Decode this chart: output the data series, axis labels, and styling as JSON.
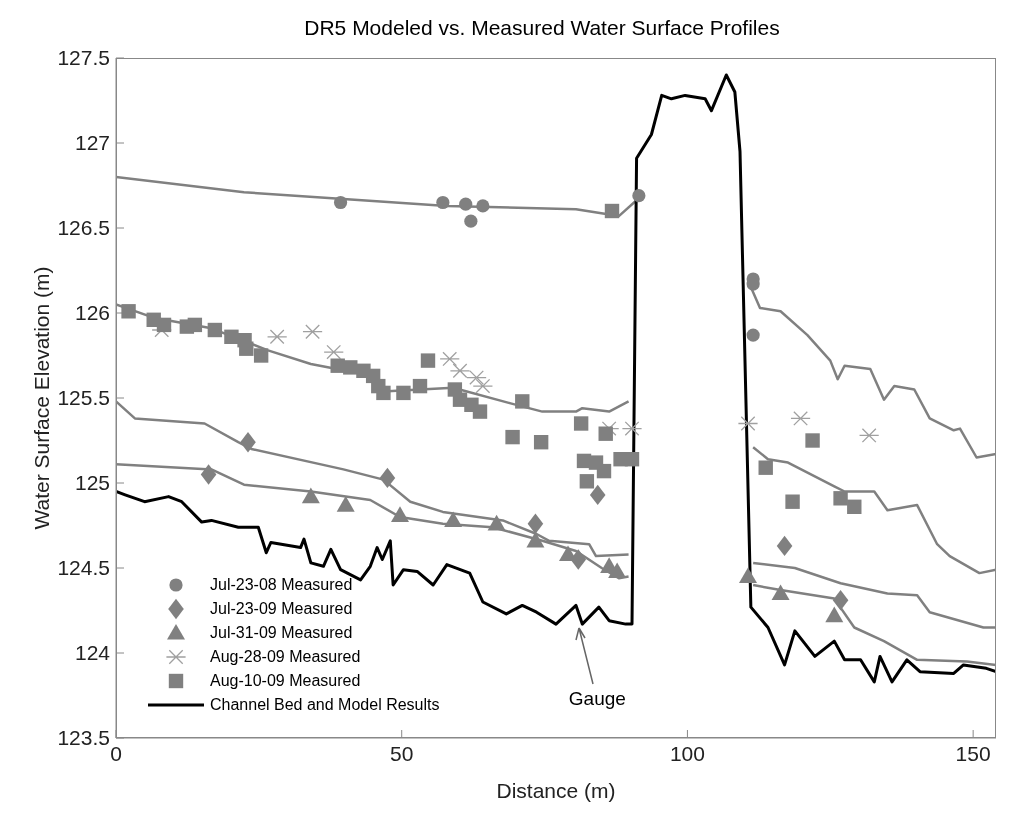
{
  "chart_data": {
    "type": "line",
    "title": "DR5 Modeled vs. Measured Water Surface Profiles",
    "xlabel": "Distance (m)",
    "ylabel": "Water Surface Elevation (m)",
    "xlim": [
      0,
      154
    ],
    "xticks": [
      0,
      50,
      100,
      150
    ],
    "ylim": [
      123.5,
      127.5
    ],
    "yticks": [
      {
        "value": 123.5,
        "label": "123.5"
      },
      124,
      {
        "value": 124.5,
        "label": "124.5"
      },
      125,
      {
        "value": 125.5,
        "label": "125.5"
      },
      126,
      {
        "value": 126.5,
        "label": "126.5"
      },
      127,
      {
        "value": 127.5,
        "label": "127.5"
      }
    ],
    "legend": "bottom left",
    "line_style": "solid",
    "annotations": [
      {
        "text": "Gauge",
        "x": 81,
        "y": 124.18
      }
    ],
    "series": [
      {
        "name": "Jul-23-08 Measured",
        "type": "scatter",
        "marker": "circle",
        "color": "#808080",
        "x": [
          39.3,
          57.2,
          61.2,
          62.1,
          64.2,
          91.5,
          111.5,
          111.5,
          111.5
        ],
        "values": [
          126.65,
          126.65,
          126.64,
          126.54,
          126.63,
          126.69,
          126.2,
          126.17,
          125.87
        ]
      },
      {
        "name": "Jul-23-09 Measured",
        "type": "scatter",
        "marker": "diamond",
        "color": "#808080",
        "x": [
          16.2,
          23.1,
          47.5,
          73.4,
          80.9,
          84.3,
          117,
          126.8
        ],
        "values": [
          125.05,
          125.24,
          125.03,
          124.76,
          124.55,
          124.93,
          124.63,
          124.31
        ]
      },
      {
        "name": "Jul-31-09 Measured",
        "type": "scatter",
        "marker": "triangle",
        "color": "#808080",
        "x": [
          34.1,
          40.2,
          49.7,
          59,
          66.6,
          73.4,
          79.1,
          86.3,
          87.7,
          110.6,
          116.3,
          125.7
        ],
        "values": [
          124.92,
          124.87,
          124.81,
          124.78,
          124.76,
          124.66,
          124.58,
          124.51,
          124.48,
          124.45,
          124.35,
          124.22
        ]
      },
      {
        "name": "Aug-28-09 Measured",
        "type": "scatter",
        "marker": "cross",
        "color": "#a0a0a0",
        "x": [
          8,
          28.2,
          34.4,
          38.1,
          58.4,
          60.2,
          63.1,
          64.2,
          86.3,
          90.3,
          110.6,
          119.8,
          131.8
        ],
        "values": [
          125.9,
          125.86,
          125.89,
          125.77,
          125.73,
          125.66,
          125.62,
          125.57,
          125.32,
          125.32,
          125.35,
          125.38,
          125.28
        ]
      },
      {
        "name": "Aug-10-09 Measured",
        "type": "scatter",
        "marker": "square",
        "color": "#808080",
        "x": [
          2.2,
          6.6,
          8.4,
          12.4,
          13.8,
          17.3,
          20.2,
          22.5,
          22.8,
          25.4,
          38.8,
          41,
          43.3,
          45,
          45.9,
          46.8,
          50.3,
          53.2,
          54.6,
          59.3,
          60.2,
          62.2,
          63.7,
          71.1,
          69.4,
          74.4,
          81.4,
          85.7,
          81.9,
          84,
          85.4,
          82.4,
          88.3,
          90.3,
          86.8,
          113.7,
          121.9,
          118.4,
          126.8,
          129.2
        ],
        "values": [
          126.01,
          125.96,
          125.93,
          125.92,
          125.93,
          125.9,
          125.86,
          125.84,
          125.79,
          125.75,
          125.69,
          125.68,
          125.66,
          125.63,
          125.57,
          125.53,
          125.53,
          125.57,
          125.72,
          125.55,
          125.49,
          125.46,
          125.42,
          125.48,
          125.27,
          125.24,
          125.35,
          125.29,
          125.13,
          125.12,
          125.07,
          125.01,
          125.14,
          125.14,
          126.6,
          125.09,
          125.25,
          124.89,
          124.91,
          124.86
        ]
      },
      {
        "type": "line",
        "color": "#808080",
        "x": [
          0,
          22.4,
          39.8,
          57.9,
          80.5,
          88,
          91,
          100,
          111,
          112.7,
          116.3,
          121,
          125,
          126.3,
          127.5,
          132,
          134.4,
          136.2,
          139.7,
          142.4,
          146.6,
          147.7,
          150.6,
          154
        ],
        "values": [
          126.8,
          126.71,
          126.67,
          126.63,
          126.61,
          126.57,
          126.66,
          null,
          126.16,
          126.03,
          126.01,
          125.87,
          125.72,
          125.61,
          125.69,
          125.67,
          125.49,
          125.57,
          125.55,
          125.38,
          125.31,
          125.32,
          125.15,
          125.17
        ]
      },
      {
        "type": "line",
        "color": "#808080",
        "x": [
          0,
          6.8,
          16.7,
          26.6,
          34.1,
          45,
          47.5,
          59,
          68.9,
          74.6,
          80.5,
          81.6,
          86.3,
          89.7,
          100,
          111.5,
          114.1,
          117.6,
          125.7,
          127.5,
          132.7,
          135,
          140.2,
          143.7,
          145.9,
          151.1,
          154
        ],
        "values": [
          126.05,
          125.97,
          125.91,
          125.78,
          125.7,
          125.63,
          125.54,
          125.56,
          125.47,
          125.42,
          125.42,
          125.44,
          125.42,
          125.48,
          null,
          125.21,
          125.14,
          125.12,
          124.98,
          124.95,
          124.95,
          124.84,
          124.87,
          124.64,
          124.57,
          124.47,
          124.49
        ]
      },
      {
        "type": "line",
        "color": "#808080",
        "x": [
          0,
          3.3,
          15.5,
          21.4,
          23.7,
          39.8,
          46.8,
          51.5,
          57.2,
          67.7,
          73.6,
          75.8,
          82.8,
          84,
          89.7,
          100,
          111.5,
          118.8,
          126.8,
          135,
          140.2,
          142.4,
          151.8,
          154
        ],
        "values": [
          125.48,
          125.38,
          125.35,
          125.24,
          125.2,
          125.08,
          125.02,
          124.89,
          124.83,
          124.78,
          124.7,
          124.66,
          124.64,
          124.57,
          124.58,
          null,
          124.53,
          124.5,
          124.41,
          124.35,
          124.34,
          124.24,
          124.15,
          124.15
        ]
      },
      {
        "type": "line",
        "color": "#808080",
        "x": [
          0,
          16.7,
          22.4,
          34.1,
          44.5,
          49.7,
          57.2,
          65.9,
          74.6,
          80.5,
          85,
          88,
          89.7,
          100,
          111.5,
          116.3,
          125.7,
          129.2,
          134.4,
          140.2,
          148.9,
          154
        ],
        "values": [
          125.11,
          125.08,
          124.99,
          124.95,
          124.9,
          124.8,
          124.76,
          124.74,
          124.66,
          124.6,
          124.5,
          124.44,
          124.45,
          null,
          124.4,
          124.37,
          124.32,
          124.15,
          124.07,
          123.96,
          123.95,
          123.93
        ]
      },
      {
        "name": "Channel Bed and Model Results",
        "type": "line",
        "color": "#000000",
        "x": [
          0,
          1.6,
          5,
          9.2,
          11.5,
          15,
          16.7,
          21.4,
          24.9,
          26.3,
          27.1,
          32.3,
          32.9,
          34.1,
          36.3,
          37.6,
          39.3,
          42.8,
          44.5,
          45.7,
          46.6,
          48,
          48.5,
          50.3,
          52.7,
          55.5,
          57.9,
          61.9,
          64.2,
          68.3,
          71.1,
          73.6,
          77,
          80.5,
          81.6,
          84.5,
          86.3,
          89.2,
          90.3,
          91.1,
          93.7,
          95.5,
          97.2,
          99.6,
          103.1,
          104.2,
          106.8,
          108.3,
          109.2,
          111.1,
          114.1,
          117,
          118.8,
          122.3,
          125.7,
          127.5,
          130.3,
          132.7,
          133.7,
          135.8,
          138.4,
          140.7,
          146.6,
          148.3,
          152.3,
          154
        ],
        "values": [
          124.95,
          124.93,
          124.89,
          124.92,
          124.89,
          124.77,
          124.78,
          124.74,
          124.74,
          124.59,
          124.65,
          124.62,
          124.67,
          124.53,
          124.51,
          124.61,
          124.49,
          124.43,
          124.51,
          124.62,
          124.55,
          124.66,
          124.4,
          124.49,
          124.48,
          124.4,
          124.52,
          124.47,
          124.3,
          124.23,
          124.28,
          124.24,
          124.17,
          124.28,
          124.17,
          124.27,
          124.19,
          124.17,
          124.17,
          126.91,
          127.05,
          127.28,
          127.26,
          127.28,
          127.26,
          127.19,
          127.4,
          127.3,
          126.95,
          124.27,
          124.15,
          123.93,
          124.13,
          123.98,
          124.07,
          123.96,
          123.96,
          123.83,
          123.98,
          123.83,
          123.96,
          123.89,
          123.88,
          123.93,
          123.91,
          123.89
        ]
      }
    ]
  }
}
